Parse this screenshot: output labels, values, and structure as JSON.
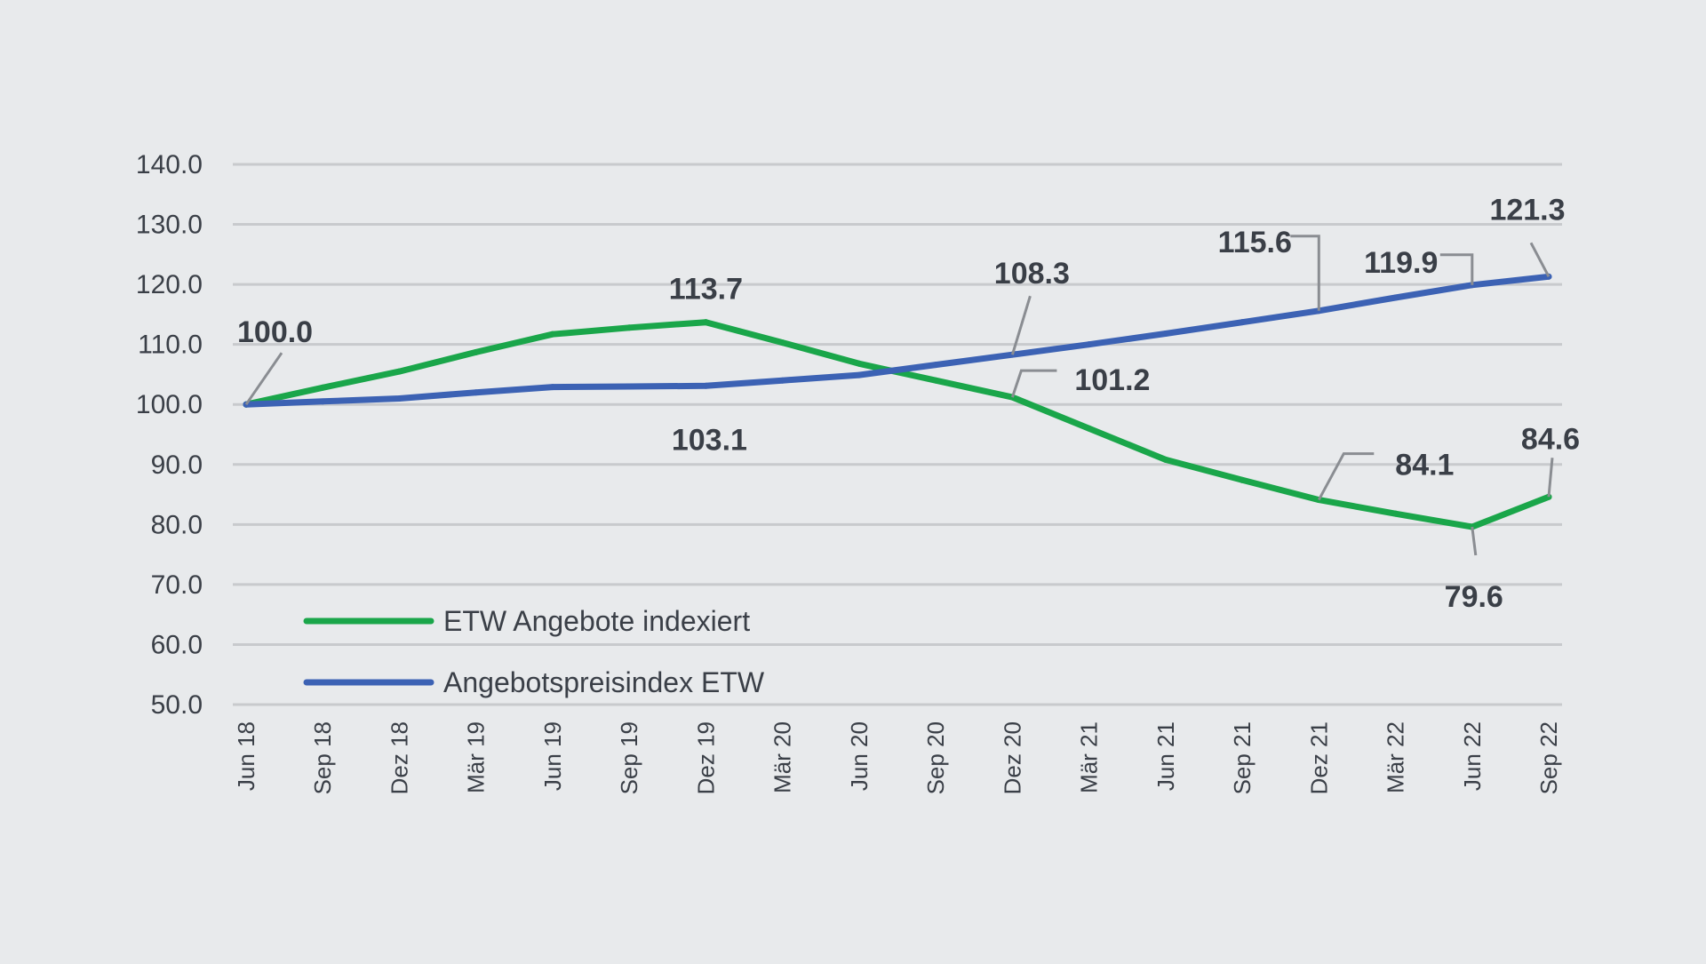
{
  "chart_data": {
    "type": "line",
    "title": "",
    "xlabel": "",
    "ylabel": "",
    "ylim": [
      50,
      140
    ],
    "yticks": [
      "140.0",
      "130.0",
      "120.0",
      "110.0",
      "100.0",
      "90.0",
      "80.0",
      "70.0",
      "60.0",
      "50.0"
    ],
    "categories": [
      "Jun 18",
      "Sep 18",
      "Dez 18",
      "Mär 19",
      "Jun 19",
      "Sep 19",
      "Dez 19",
      "Mär 20",
      "Jun 20",
      "Sep 20",
      "Dez 20",
      "Mär 21",
      "Jun 21",
      "Sep 21",
      "Dez 21",
      "Mär 22",
      "Jun 22",
      "Sep 22"
    ],
    "grid": true,
    "legend_position": "bottom-left",
    "series": [
      {
        "name": "ETW Angebote indexiert",
        "color": "#1aa64a",
        "values": [
          100.0,
          102.8,
          105.5,
          108.7,
          111.7,
          112.8,
          113.7,
          110.3,
          106.8,
          104.0,
          101.2,
          96.0,
          90.8,
          87.4,
          84.1,
          81.8,
          79.6,
          84.6
        ]
      },
      {
        "name": "Angebotspreisindex ETW",
        "color": "#3c62b4",
        "values": [
          100.0,
          100.5,
          101.0,
          102.0,
          102.9,
          103.0,
          103.1,
          104.0,
          104.9,
          106.6,
          108.3,
          110.0,
          111.8,
          113.7,
          115.6,
          117.8,
          119.9,
          121.3
        ]
      }
    ],
    "annotations": [
      {
        "text": "100.0",
        "series": 0,
        "index": 0
      },
      {
        "text": "113.7",
        "series": 0,
        "index": 6
      },
      {
        "text": "103.1",
        "series": 1,
        "index": 6
      },
      {
        "text": "108.3",
        "series": 1,
        "index": 10
      },
      {
        "text": "101.2",
        "series": 0,
        "index": 10
      },
      {
        "text": "115.6",
        "series": 1,
        "index": 14
      },
      {
        "text": "84.1",
        "series": 0,
        "index": 14
      },
      {
        "text": "119.9",
        "series": 1,
        "index": 16
      },
      {
        "text": "79.6",
        "series": 0,
        "index": 16
      },
      {
        "text": "121.3",
        "series": 1,
        "index": 17
      },
      {
        "text": "84.6",
        "series": 0,
        "index": 17
      }
    ]
  }
}
